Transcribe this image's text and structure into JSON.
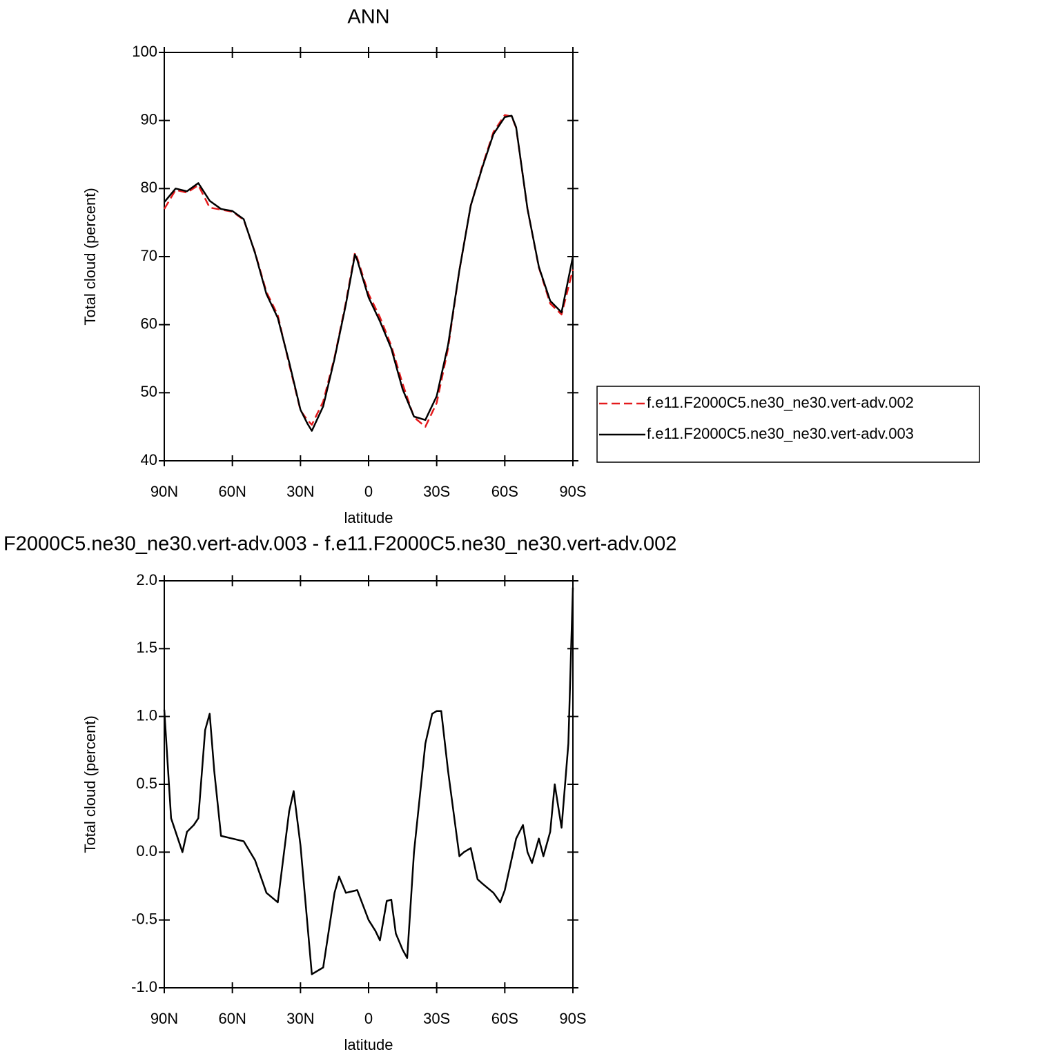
{
  "chart_data": [
    {
      "type": "line",
      "title": "ANN",
      "xlabel": "latitude",
      "ylabel": "Total cloud (percent)",
      "x": [
        90,
        85,
        80,
        75,
        70,
        65,
        60,
        55,
        50,
        45,
        40,
        35,
        30,
        27,
        25,
        20,
        15,
        10,
        6,
        5,
        0,
        -5,
        -10,
        -15,
        -20,
        -25,
        -30,
        -35,
        -40,
        -45,
        -50,
        -55,
        -60,
        -63,
        -65,
        -70,
        -75,
        -80,
        -85,
        -90
      ],
      "series": [
        {
          "name": "f.e11.F2000C5.ne30_ne30.vert-adv.002",
          "color": "#e41a1c",
          "dashed": true,
          "values": [
            77,
            79.8,
            79.4,
            80.5,
            77.2,
            76.9,
            76.6,
            75.4,
            70.6,
            64.8,
            61.4,
            54.2,
            47.4,
            46,
            45.3,
            48.7,
            55.2,
            63.3,
            70.6,
            69.8,
            64.5,
            61.1,
            56.9,
            51.3,
            46.4,
            45,
            48.5,
            56.5,
            68,
            77.5,
            83.2,
            88.3,
            90.8,
            90.6,
            88.9,
            77,
            68.4,
            63.1,
            61.5,
            68.1
          ]
        },
        {
          "name": "f.e11.F2000C5.ne30_ne30.vert-adv.003",
          "color": "#000000",
          "dashed": false,
          "values": [
            78,
            80,
            79.6,
            80.8,
            78.2,
            77,
            76.7,
            75.5,
            70.5,
            64.5,
            61,
            54.5,
            47.5,
            45.5,
            44.4,
            48,
            55,
            63,
            70.3,
            69.5,
            64,
            60.5,
            56.5,
            50.5,
            46.5,
            46,
            49.5,
            57,
            68,
            77.5,
            83,
            88,
            90.5,
            90.7,
            89,
            77,
            68.5,
            63.5,
            61.8,
            70
          ]
        }
      ],
      "xlim": [
        90,
        -90
      ],
      "xticks": [
        {
          "value": 90,
          "label": "90N"
        },
        {
          "value": 60,
          "label": "60N"
        },
        {
          "value": 30,
          "label": "30N"
        },
        0,
        {
          "value": -30,
          "label": "30S"
        },
        {
          "value": -60,
          "label": "60S"
        },
        {
          "value": -90,
          "label": "90S"
        }
      ],
      "ylim": [
        40,
        100
      ],
      "yticks": [
        40,
        50,
        60,
        70,
        80,
        90,
        100
      ],
      "legend": "right"
    },
    {
      "type": "line",
      "title": "F2000C5.ne30_ne30.vert-adv.003 - f.e11.F2000C5.ne30_ne30.vert-adv.002",
      "xlabel": "latitude",
      "ylabel": "Total cloud (percent)",
      "x": [
        90,
        87,
        85,
        82,
        80,
        77,
        75,
        72,
        70,
        68,
        65,
        60,
        55,
        50,
        45,
        40,
        35,
        33,
        30,
        25,
        20,
        15,
        13,
        10,
        5,
        0,
        -3,
        -5,
        -8,
        -10,
        -12,
        -15,
        -17,
        -20,
        -25,
        -28,
        -30,
        -32,
        -35,
        -40,
        -42,
        -45,
        -48,
        -50,
        -55,
        -58,
        -60,
        -65,
        -68,
        -70,
        -72,
        -75,
        -77,
        -80,
        -82,
        -85,
        -88,
        -90
      ],
      "values": [
        1.05,
        0.25,
        0.15,
        0,
        0.15,
        0.2,
        0.25,
        0.9,
        1.02,
        0.6,
        0.12,
        0.1,
        0.08,
        -0.06,
        -0.3,
        -0.37,
        0.3,
        0.45,
        0.05,
        -0.9,
        -0.85,
        -0.3,
        -0.18,
        -0.3,
        -0.28,
        -0.5,
        -0.58,
        -0.65,
        -0.36,
        -0.35,
        -0.6,
        -0.72,
        -0.78,
        0,
        0.8,
        1.02,
        1.04,
        1.04,
        0.6,
        -0.03,
        0,
        0.03,
        -0.2,
        -0.23,
        -0.3,
        -0.37,
        -0.28,
        0.1,
        0.2,
        0,
        -0.08,
        0.1,
        -0.03,
        0.15,
        0.5,
        0.18,
        0.8,
        1.95
      ],
      "color": "#000000",
      "xlim": [
        90,
        -90
      ],
      "xticks": [
        {
          "value": 90,
          "label": "90N"
        },
        {
          "value": 60,
          "label": "60N"
        },
        {
          "value": 30,
          "label": "30N"
        },
        0,
        {
          "value": -30,
          "label": "30S"
        },
        {
          "value": -60,
          "label": "60S"
        },
        {
          "value": -90,
          "label": "90S"
        }
      ],
      "ylim": [
        -1,
        2
      ],
      "yticks": [
        {
          "value": -1,
          "label": "-1.0"
        },
        -0.5,
        {
          "value": 0,
          "label": "0.0"
        },
        0.5,
        {
          "value": 1,
          "label": "1.0"
        },
        1.5,
        {
          "value": 2,
          "label": "2.0"
        }
      ]
    }
  ]
}
